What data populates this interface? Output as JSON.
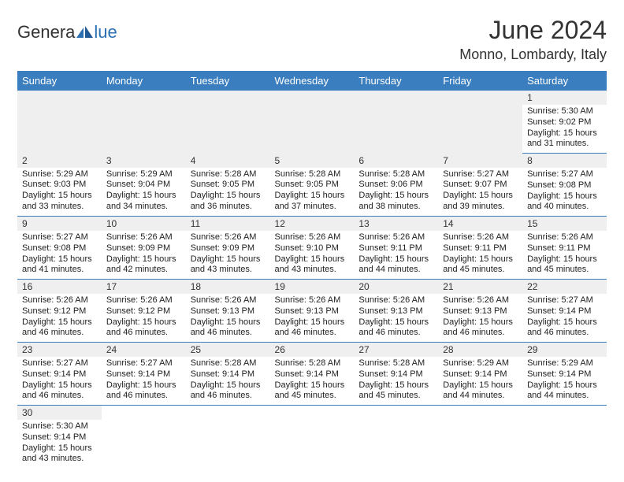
{
  "brand": {
    "part1": "Genera",
    "part2": "lue"
  },
  "title": "June 2024",
  "location": "Monno, Lombardy, Italy",
  "colors": {
    "header_bg": "#3a7ebf",
    "header_text": "#ffffff",
    "daynum_bg": "#efefef",
    "row_divider": "#3a7ebf",
    "brand_blue": "#2b6fb3"
  },
  "weekdays": [
    "Sunday",
    "Monday",
    "Tuesday",
    "Wednesday",
    "Thursday",
    "Friday",
    "Saturday"
  ],
  "weeks": [
    [
      null,
      null,
      null,
      null,
      null,
      null,
      {
        "n": "1",
        "sr": "Sunrise: 5:30 AM",
        "ss": "Sunset: 9:02 PM",
        "dl": "Daylight: 15 hours and 31 minutes."
      }
    ],
    [
      {
        "n": "2",
        "sr": "Sunrise: 5:29 AM",
        "ss": "Sunset: 9:03 PM",
        "dl": "Daylight: 15 hours and 33 minutes."
      },
      {
        "n": "3",
        "sr": "Sunrise: 5:29 AM",
        "ss": "Sunset: 9:04 PM",
        "dl": "Daylight: 15 hours and 34 minutes."
      },
      {
        "n": "4",
        "sr": "Sunrise: 5:28 AM",
        "ss": "Sunset: 9:05 PM",
        "dl": "Daylight: 15 hours and 36 minutes."
      },
      {
        "n": "5",
        "sr": "Sunrise: 5:28 AM",
        "ss": "Sunset: 9:05 PM",
        "dl": "Daylight: 15 hours and 37 minutes."
      },
      {
        "n": "6",
        "sr": "Sunrise: 5:28 AM",
        "ss": "Sunset: 9:06 PM",
        "dl": "Daylight: 15 hours and 38 minutes."
      },
      {
        "n": "7",
        "sr": "Sunrise: 5:27 AM",
        "ss": "Sunset: 9:07 PM",
        "dl": "Daylight: 15 hours and 39 minutes."
      },
      {
        "n": "8",
        "sr": "Sunrise: 5:27 AM",
        "ss": "Sunset: 9:08 PM",
        "dl": "Daylight: 15 hours and 40 minutes."
      }
    ],
    [
      {
        "n": "9",
        "sr": "Sunrise: 5:27 AM",
        "ss": "Sunset: 9:08 PM",
        "dl": "Daylight: 15 hours and 41 minutes."
      },
      {
        "n": "10",
        "sr": "Sunrise: 5:26 AM",
        "ss": "Sunset: 9:09 PM",
        "dl": "Daylight: 15 hours and 42 minutes."
      },
      {
        "n": "11",
        "sr": "Sunrise: 5:26 AM",
        "ss": "Sunset: 9:09 PM",
        "dl": "Daylight: 15 hours and 43 minutes."
      },
      {
        "n": "12",
        "sr": "Sunrise: 5:26 AM",
        "ss": "Sunset: 9:10 PM",
        "dl": "Daylight: 15 hours and 43 minutes."
      },
      {
        "n": "13",
        "sr": "Sunrise: 5:26 AM",
        "ss": "Sunset: 9:11 PM",
        "dl": "Daylight: 15 hours and 44 minutes."
      },
      {
        "n": "14",
        "sr": "Sunrise: 5:26 AM",
        "ss": "Sunset: 9:11 PM",
        "dl": "Daylight: 15 hours and 45 minutes."
      },
      {
        "n": "15",
        "sr": "Sunrise: 5:26 AM",
        "ss": "Sunset: 9:11 PM",
        "dl": "Daylight: 15 hours and 45 minutes."
      }
    ],
    [
      {
        "n": "16",
        "sr": "Sunrise: 5:26 AM",
        "ss": "Sunset: 9:12 PM",
        "dl": "Daylight: 15 hours and 46 minutes."
      },
      {
        "n": "17",
        "sr": "Sunrise: 5:26 AM",
        "ss": "Sunset: 9:12 PM",
        "dl": "Daylight: 15 hours and 46 minutes."
      },
      {
        "n": "18",
        "sr": "Sunrise: 5:26 AM",
        "ss": "Sunset: 9:13 PM",
        "dl": "Daylight: 15 hours and 46 minutes."
      },
      {
        "n": "19",
        "sr": "Sunrise: 5:26 AM",
        "ss": "Sunset: 9:13 PM",
        "dl": "Daylight: 15 hours and 46 minutes."
      },
      {
        "n": "20",
        "sr": "Sunrise: 5:26 AM",
        "ss": "Sunset: 9:13 PM",
        "dl": "Daylight: 15 hours and 46 minutes."
      },
      {
        "n": "21",
        "sr": "Sunrise: 5:26 AM",
        "ss": "Sunset: 9:13 PM",
        "dl": "Daylight: 15 hours and 46 minutes."
      },
      {
        "n": "22",
        "sr": "Sunrise: 5:27 AM",
        "ss": "Sunset: 9:14 PM",
        "dl": "Daylight: 15 hours and 46 minutes."
      }
    ],
    [
      {
        "n": "23",
        "sr": "Sunrise: 5:27 AM",
        "ss": "Sunset: 9:14 PM",
        "dl": "Daylight: 15 hours and 46 minutes."
      },
      {
        "n": "24",
        "sr": "Sunrise: 5:27 AM",
        "ss": "Sunset: 9:14 PM",
        "dl": "Daylight: 15 hours and 46 minutes."
      },
      {
        "n": "25",
        "sr": "Sunrise: 5:28 AM",
        "ss": "Sunset: 9:14 PM",
        "dl": "Daylight: 15 hours and 46 minutes."
      },
      {
        "n": "26",
        "sr": "Sunrise: 5:28 AM",
        "ss": "Sunset: 9:14 PM",
        "dl": "Daylight: 15 hours and 45 minutes."
      },
      {
        "n": "27",
        "sr": "Sunrise: 5:28 AM",
        "ss": "Sunset: 9:14 PM",
        "dl": "Daylight: 15 hours and 45 minutes."
      },
      {
        "n": "28",
        "sr": "Sunrise: 5:29 AM",
        "ss": "Sunset: 9:14 PM",
        "dl": "Daylight: 15 hours and 44 minutes."
      },
      {
        "n": "29",
        "sr": "Sunrise: 5:29 AM",
        "ss": "Sunset: 9:14 PM",
        "dl": "Daylight: 15 hours and 44 minutes."
      }
    ],
    [
      {
        "n": "30",
        "sr": "Sunrise: 5:30 AM",
        "ss": "Sunset: 9:14 PM",
        "dl": "Daylight: 15 hours and 43 minutes."
      },
      null,
      null,
      null,
      null,
      null,
      null
    ]
  ]
}
